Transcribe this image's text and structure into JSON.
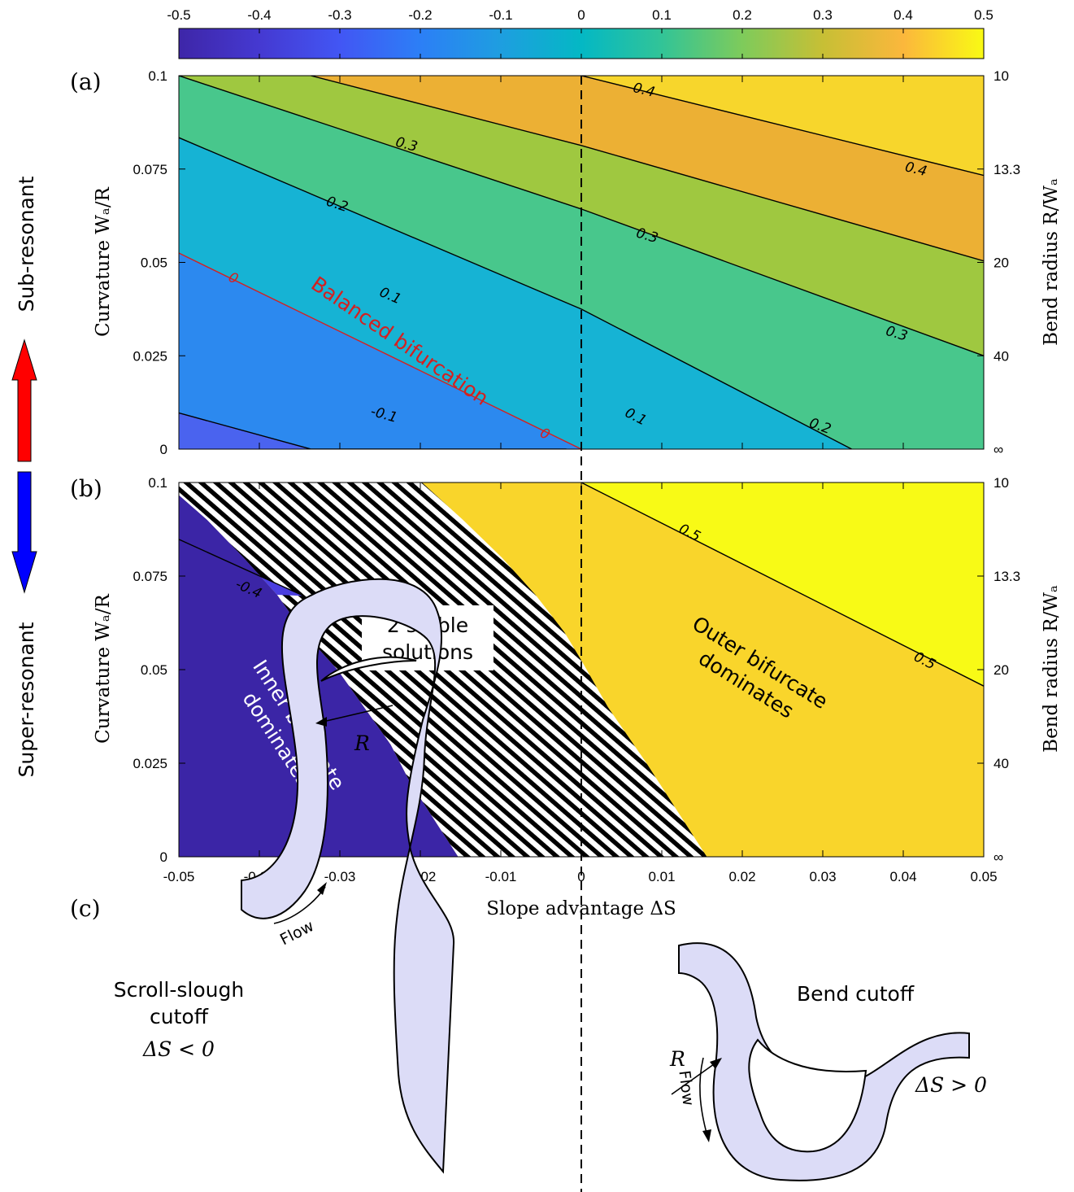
{
  "chart_data": [
    {
      "type": "heatmap",
      "panel_label": "(a)",
      "xlim": [
        -0.05,
        0.05
      ],
      "ylim": [
        0,
        0.1
      ],
      "y_ticks": [
        "0",
        "0.025",
        "0.05",
        "0.075",
        "0.1"
      ],
      "y2_ticks": [
        "∞",
        "40",
        "20",
        "13.3",
        "10"
      ],
      "ylabel": "Curvature Wₐ/R",
      "y2label": "Bend radius R/Wₐ",
      "contour_lines": [
        {
          "level": -0.1,
          "points": [
            [
              -0.05,
              0.0097
            ],
            [
              -0.0336,
              0.0
            ],
            [
              -0.00186,
              0.0
            ]
          ]
        },
        {
          "level": 0.0,
          "points": [
            [
              -0.05,
              0.0525
            ],
            [
              0.0,
              0.0
            ]
          ]
        },
        {
          "level": 0.1,
          "points": [
            [
              -0.05,
              0.0834
            ],
            [
              0.0,
              0.0375
            ],
            [
              0.0336,
              0.0
            ]
          ]
        },
        {
          "level": 0.2,
          "points": [
            [
              -0.05,
              0.1
            ],
            [
              0.0,
              0.0643
            ],
            [
              0.05,
              0.025
            ]
          ]
        },
        {
          "level": 0.3,
          "points": [
            [
              -0.0336,
              0.1
            ],
            [
              0.0,
              0.0813
            ],
            [
              0.05,
              0.0504
            ]
          ]
        },
        {
          "level": 0.4,
          "points": [
            [
              0.0,
              0.1
            ],
            [
              0.05,
              0.0733
            ]
          ]
        }
      ],
      "contour_labels": [
        {
          "text": "0.4",
          "x": 0.0078,
          "y": 0.0963
        },
        {
          "text": "0.4",
          "x": 0.0416,
          "y": 0.0751
        },
        {
          "text": "0.3",
          "x": -0.0217,
          "y": 0.0817
        },
        {
          "text": "0.3",
          "x": 0.0082,
          "y": 0.0573
        },
        {
          "text": "0.3",
          "x": 0.0392,
          "y": 0.0311
        },
        {
          "text": "0.2",
          "x": -0.0303,
          "y": 0.0657
        },
        {
          "text": "0.2",
          "x": 0.0297,
          "y": 0.0063
        },
        {
          "text": "0.1",
          "x": -0.0237,
          "y": 0.0412
        },
        {
          "text": "0.1",
          "x": 0.0068,
          "y": 0.0088
        },
        {
          "text": "-0.1",
          "x": -0.0245,
          "y": 0.0094
        },
        {
          "text": "0",
          "x": -0.0432,
          "y": 0.0459
        },
        {
          "text": "0",
          "x": -0.0045,
          "y": 0.0042
        }
      ],
      "annotation": "Balanced bifurcation",
      "colorbar": {
        "range": [
          -0.5,
          0.5
        ],
        "ticks": [
          "-0.5",
          "-0.4",
          "-0.3",
          "-0.2",
          "-0.1",
          "0",
          "0.1",
          "0.2",
          "0.3",
          "0.4",
          "0.5"
        ]
      }
    },
    {
      "type": "heatmap",
      "panel_label": "(b)",
      "xlim": [
        -0.05,
        0.05
      ],
      "ylim": [
        0,
        0.1
      ],
      "x_ticks": [
        "-0.05",
        "-0.04",
        "-0.03",
        "-0.02",
        "-0.01",
        "0",
        "0.01",
        "0.02",
        "0.03",
        "0.04",
        "0.05"
      ],
      "y_ticks": [
        "0",
        "0.025",
        "0.05",
        "0.075",
        "0.1"
      ],
      "y2_ticks": [
        "∞",
        "40",
        "20",
        "13.3",
        "10"
      ],
      "xlabel": "Slope advantage ΔS",
      "ylabel": "Curvature Wₐ/R",
      "y2label": "Bend radius R/Wₐ",
      "inner_region_boundary": [
        [
          -0.05,
          0.0966
        ],
        [
          -0.0465,
          0.09
        ],
        [
          -0.042,
          0.08
        ],
        [
          -0.0378,
          0.07
        ],
        [
          -0.0345,
          0.06
        ],
        [
          -0.0303,
          0.05
        ],
        [
          -0.027,
          0.04
        ],
        [
          -0.0237,
          0.03
        ],
        [
          -0.0213,
          0.02
        ],
        [
          -0.0183,
          0.01
        ],
        [
          -0.0153,
          0.0
        ]
      ],
      "outer_region_boundary": [
        [
          -0.0198,
          0.1
        ],
        [
          -0.0147,
          0.09
        ],
        [
          -0.0099,
          0.08
        ],
        [
          -0.0057,
          0.07
        ],
        [
          -0.0021,
          0.06
        ],
        [
          0.0,
          0.0525
        ],
        [
          0.0033,
          0.04
        ],
        [
          0.0081,
          0.025
        ],
        [
          0.0126,
          0.01
        ],
        [
          0.0156,
          0.0
        ]
      ],
      "contour_lines": [
        {
          "level": -0.4,
          "points": [
            [
              -0.05,
              0.0848
            ],
            [
              -0.0345,
              0.0697
            ]
          ]
        },
        {
          "level": 0.5,
          "points": [
            [
              0.0,
              0.1
            ],
            [
              0.05,
              0.0456
            ]
          ]
        }
      ],
      "contour_labels": [
        {
          "text": "-0.4",
          "x": -0.0413,
          "y": 0.0717
        },
        {
          "text": "0.5",
          "x": 0.0135,
          "y": 0.0867
        },
        {
          "text": "0.5",
          "x": 0.0427,
          "y": 0.0525
        }
      ],
      "region_labels": {
        "two_stable_line1": "2 stable",
        "two_stable_line2": "solutions",
        "inner_line1": "Inner bifurcate",
        "inner_line2": "dominates",
        "outer_line1": "Outer bifurcate",
        "outer_line2": "dominates"
      }
    }
  ],
  "side_labels": {
    "up": "Sub-resonant",
    "down": "Super-resonant"
  },
  "panel_c": {
    "label": "(c)",
    "left_title_line1": "Scroll-slough",
    "left_title_line2": "cutoff",
    "left_condition": "ΔS < 0",
    "right_title": "Bend cutoff",
    "right_condition": "ΔS > 0",
    "radius_label": "R",
    "flow_label": "Flow"
  },
  "colors": {
    "contour_zero": "#d42020",
    "inner_region": "#3b25a6",
    "outer_region": "#f9d52b",
    "channel_fill": "#dcdcf7",
    "arrow_up": "#ff0000",
    "arrow_down": "#0000ff"
  }
}
